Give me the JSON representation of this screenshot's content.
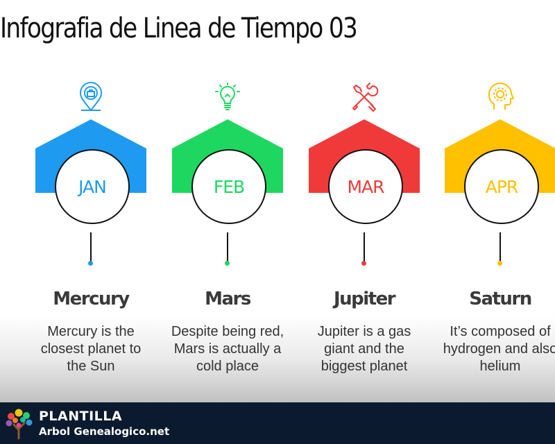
{
  "title": "Infografia de Linea de Tiempo 03",
  "steps": [
    {
      "month": "JAN",
      "planet": "Mercury",
      "desc_lines": [
        "Mercury is the",
        "closest planet to",
        "the Sun"
      ],
      "color": "#1E9BF0",
      "icon": "location-pin-icon"
    },
    {
      "month": "FEB",
      "planet": "Mars",
      "desc_lines": [
        "Despite being red,",
        "Mars is actually a",
        "cold place"
      ],
      "color": "#1ED760",
      "icon": "lightbulb-icon"
    },
    {
      "month": "MAR",
      "planet": "Jupiter",
      "desc_lines": [
        "Jupiter is a gas",
        "giant and the",
        "biggest planet"
      ],
      "color": "#F03A3A",
      "icon": "tools-icon"
    },
    {
      "month": "APR",
      "planet": "Saturn",
      "desc_lines": [
        "It’s composed of",
        "hydrogen and also",
        "helium"
      ],
      "color": "#FFC000",
      "icon": "head-gear-icon"
    }
  ],
  "footer": {
    "line1": "PLANTILLA",
    "line2": "Arbol Genealogico.net",
    "logo_icon": "tree-logo-icon"
  }
}
